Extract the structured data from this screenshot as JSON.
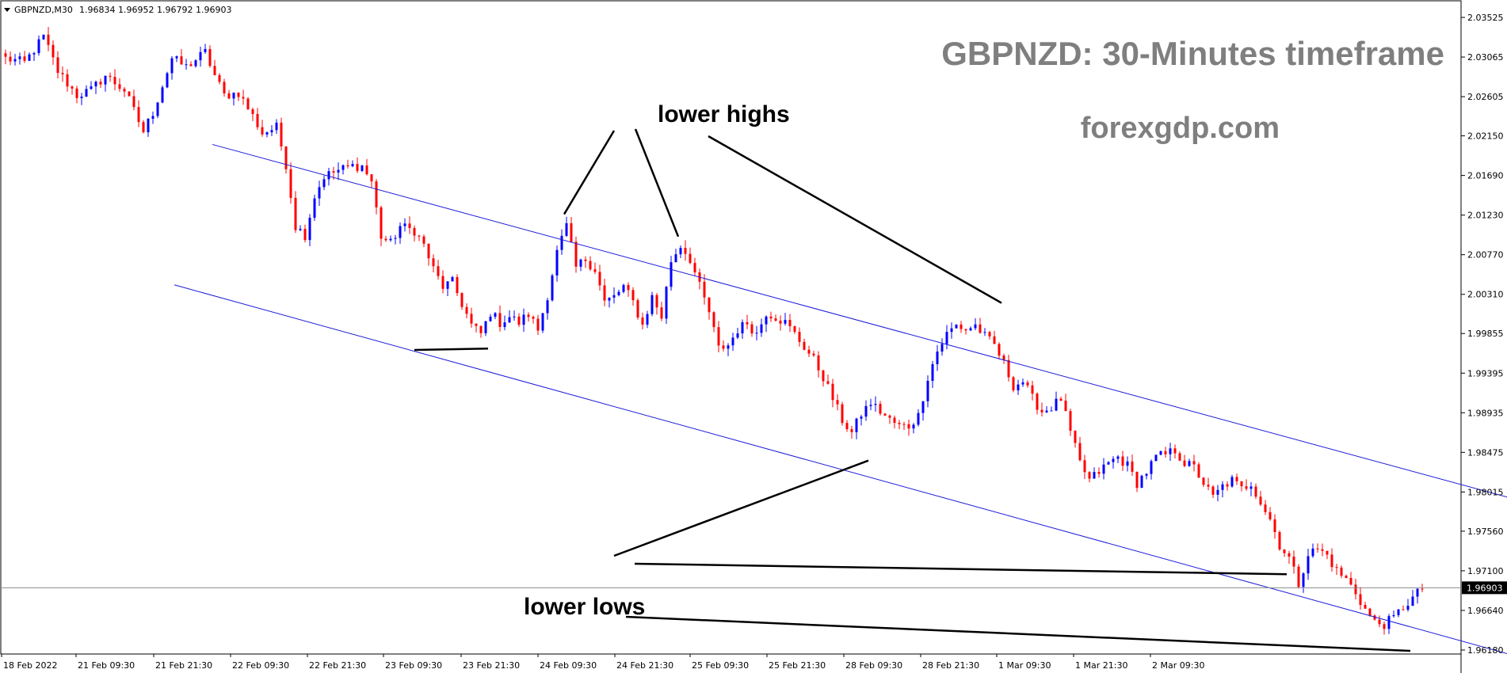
{
  "window": {
    "symbol_header": "GBPNZD,M30",
    "ohlc": [
      "1.96834",
      "1.96952",
      "1.96792",
      "1.96903"
    ]
  },
  "watermark": {
    "title": "GBPNZD: 30-Minutes timeframe",
    "site": "forexgdp.com"
  },
  "annotations": {
    "lower_highs": "lower highs",
    "lower_lows": "lower lows"
  },
  "colors": {
    "bull": "#0000ff",
    "bear": "#ff0000",
    "channel": "#1a1adb",
    "watermark": "#7f7f7f",
    "current_price_box": "#000000"
  },
  "chart_data": {
    "type": "candlestick",
    "symbol": "GBPNZD",
    "timeframe": "M30",
    "current_price": "1.96903",
    "ylim": [
      1.9605,
      2.0375
    ],
    "y_ticks": [
      "2.03525",
      "2.03065",
      "2.02605",
      "2.02150",
      "2.01690",
      "2.01230",
      "2.00770",
      "2.00310",
      "1.99855",
      "1.99395",
      "1.98935",
      "1.98475",
      "1.98015",
      "1.97560",
      "1.97100",
      "1.96640",
      "1.96180"
    ],
    "x_ticks": [
      "18 Feb 2022",
      "21 Feb 09:30",
      "21 Feb 21:30",
      "22 Feb 09:30",
      "22 Feb 21:30",
      "23 Feb 09:30",
      "23 Feb 21:30",
      "24 Feb 09:30",
      "24 Feb 21:30",
      "25 Feb 09:30",
      "25 Feb 21:30",
      "28 Feb 09:30",
      "28 Feb 21:30",
      "1 Mar 09:30",
      "1 Mar 21:30",
      "2 Mar 09:30"
    ],
    "price_path": [
      [
        0,
        2.0305
      ],
      [
        4,
        2.03
      ],
      [
        8,
        2.033
      ],
      [
        11,
        2.029
      ],
      [
        15,
        2.0262
      ],
      [
        18,
        2.0268
      ],
      [
        21,
        2.0285
      ],
      [
        25,
        2.0268
      ],
      [
        29,
        2.022
      ],
      [
        31,
        2.0242
      ],
      [
        35,
        2.0305
      ],
      [
        38,
        2.0295
      ],
      [
        42,
        2.0312
      ],
      [
        44,
        2.0285
      ],
      [
        46,
        2.0262
      ],
      [
        49,
        2.0265
      ],
      [
        52,
        2.0238
      ],
      [
        54,
        2.0218
      ],
      [
        57,
        2.0225
      ],
      [
        59,
        2.0182
      ],
      [
        61,
        2.011
      ],
      [
        63,
        2.01
      ],
      [
        65,
        2.0145
      ],
      [
        67,
        2.0168
      ],
      [
        70,
        2.0175
      ],
      [
        73,
        2.018
      ],
      [
        75,
        2.018
      ],
      [
        77,
        2.0162
      ],
      [
        79,
        2.0098
      ],
      [
        81,
        2.009
      ],
      [
        83,
        2.011
      ],
      [
        86,
        2.0105
      ],
      [
        88,
        2.0088
      ],
      [
        90,
        2.006
      ],
      [
        92,
        2.004
      ],
      [
        94,
        2.0045
      ],
      [
        96,
        2.002
      ],
      [
        98,
        1.9995
      ],
      [
        100,
        1.9985
      ],
      [
        102,
        2.001
      ],
      [
        104,
        1.9998
      ],
      [
        106,
        2.0005
      ],
      [
        108,
        1.9998
      ],
      [
        110,
        2.0008
      ],
      [
        112,
        1.999
      ],
      [
        114,
        2.003
      ],
      [
        116,
        2.008
      ],
      [
        118,
        2.011
      ],
      [
        120,
        2.0062
      ],
      [
        122,
        2.0072
      ],
      [
        124,
        2.006
      ],
      [
        126,
        2.0022
      ],
      [
        128,
        2.0028
      ],
      [
        130,
        2.004
      ],
      [
        132,
        2.0022
      ],
      [
        134,
        1.9995
      ],
      [
        136,
        2.0028
      ],
      [
        138,
        2.0005
      ],
      [
        140,
        2.007
      ],
      [
        142,
        2.0088
      ],
      [
        144,
        2.0072
      ],
      [
        146,
        2.004
      ],
      [
        148,
        2.001
      ],
      [
        150,
        1.9968
      ],
      [
        152,
        1.9972
      ],
      [
        154,
        1.999
      ],
      [
        156,
        1.9998
      ],
      [
        158,
        1.9985
      ],
      [
        160,
        2.001
      ],
      [
        162,
        2.0005
      ],
      [
        164,
        1.9998
      ],
      [
        166,
        1.9985
      ],
      [
        168,
        1.997
      ],
      [
        170,
        1.9955
      ],
      [
        172,
        1.9935
      ],
      [
        174,
        1.991
      ],
      [
        176,
        1.9885
      ],
      [
        178,
        1.987
      ],
      [
        180,
        1.9892
      ],
      [
        182,
        1.9905
      ],
      [
        184,
        1.9895
      ],
      [
        186,
        1.9885
      ],
      [
        188,
        1.9878
      ],
      [
        190,
        1.9878
      ],
      [
        192,
        1.989
      ],
      [
        194,
        1.9935
      ],
      [
        196,
        1.9965
      ],
      [
        198,
        1.9985
      ],
      [
        200,
        1.9995
      ],
      [
        202,
        1.999
      ],
      [
        204,
        1.9995
      ],
      [
        206,
        1.9982
      ],
      [
        208,
        1.9972
      ],
      [
        210,
        1.995
      ],
      [
        212,
        1.9925
      ],
      [
        214,
        1.993
      ],
      [
        216,
        1.991
      ],
      [
        218,
        1.9895
      ],
      [
        220,
        1.99
      ],
      [
        222,
        1.991
      ],
      [
        224,
        1.987
      ],
      [
        226,
        1.9835
      ],
      [
        228,
        1.9815
      ],
      [
        230,
        1.9825
      ],
      [
        232,
        1.9835
      ],
      [
        234,
        1.9842
      ],
      [
        236,
        1.9832
      ],
      [
        238,
        1.9812
      ],
      [
        240,
        1.9825
      ],
      [
        242,
        1.9842
      ],
      [
        244,
        1.9845
      ],
      [
        246,
        1.985
      ],
      [
        248,
        1.9835
      ],
      [
        250,
        1.983
      ],
      [
        252,
        1.9812
      ],
      [
        254,
        1.9795
      ],
      [
        256,
        1.9808
      ],
      [
        258,
        1.9815
      ],
      [
        260,
        1.9805
      ],
      [
        262,
        1.9812
      ],
      [
        264,
        1.979
      ],
      [
        266,
        1.977
      ],
      [
        268,
        1.974
      ],
      [
        270,
        1.9725
      ],
      [
        272,
        1.9695
      ],
      [
        274,
        1.973
      ],
      [
        276,
        1.9735
      ],
      [
        278,
        1.9728
      ],
      [
        280,
        1.971
      ],
      [
        282,
        1.97
      ],
      [
        284,
        1.9685
      ],
      [
        286,
        1.9665
      ],
      [
        288,
        1.965
      ],
      [
        290,
        1.9648
      ],
      [
        292,
        1.9655
      ],
      [
        294,
        1.9668
      ],
      [
        296,
        1.9678
      ],
      [
        298,
        1.969
      ]
    ],
    "channel": {
      "upper": {
        "from": [
          44,
          2.0205
        ],
        "to": [
          360,
          1.973
        ]
      },
      "lower": {
        "from": [
          36,
          2.0042
        ],
        "to": [
          330,
          1.9593
        ]
      }
    },
    "annotations": [
      {
        "text": "lower highs",
        "points": [
          [
            118,
            2.0124
          ],
          [
            142,
            2.0098
          ],
          [
            210,
            2.0021
          ]
        ]
      },
      {
        "text": "lower lows",
        "points": [
          [
            102,
            1.9968
          ],
          [
            182,
            1.9838
          ],
          [
            270,
            1.9706
          ],
          [
            296,
            1.9617
          ]
        ]
      }
    ]
  }
}
